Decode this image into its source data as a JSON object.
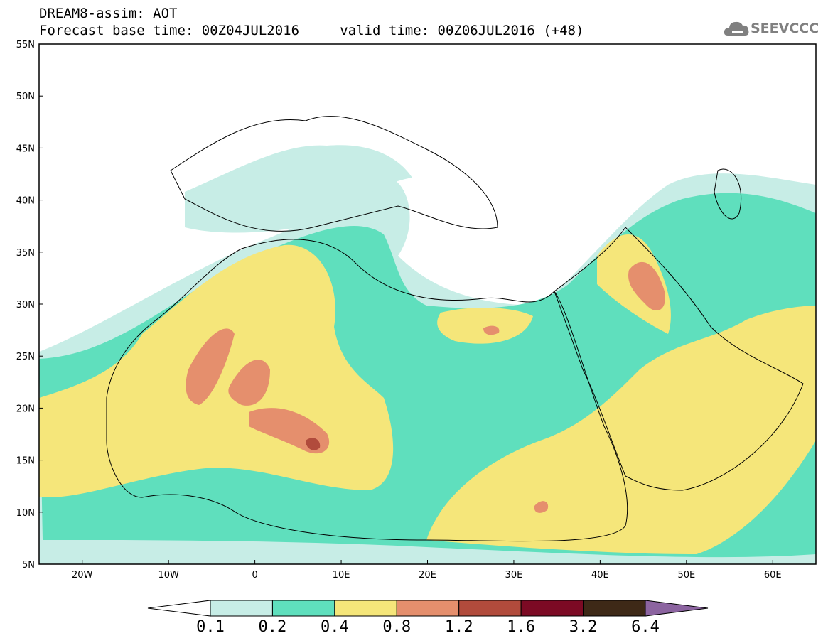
{
  "header": {
    "line1": "DREAM8-assim: AOT",
    "line2": "Forecast base time: 00Z04JUL2016     valid time: 00Z06JUL2016 (+48)"
  },
  "logo": {
    "text": "SEEVCCC",
    "icon": "cloud-icon"
  },
  "axes": {
    "lat_labels": [
      "55N",
      "50N",
      "45N",
      "40N",
      "35N",
      "30N",
      "25N",
      "20N",
      "15N",
      "10N",
      "5N"
    ],
    "lon_labels": [
      "20W",
      "10W",
      "0",
      "10E",
      "20E",
      "30E",
      "40E",
      "50E",
      "60E"
    ],
    "lon_range": [
      -25,
      65
    ],
    "lat_range": [
      5,
      55
    ]
  },
  "colorbar": {
    "levels": [
      "0.1",
      "0.2",
      "0.4",
      "0.8",
      "1.2",
      "1.6",
      "3.2",
      "6.4"
    ],
    "colors": [
      "#ffffff",
      "#c7ede6",
      "#5fdfbd",
      "#f5e67a",
      "#e58f6d",
      "#b14b3c",
      "#7c0a24",
      "#3e2917",
      "#8c64a0"
    ]
  }
}
